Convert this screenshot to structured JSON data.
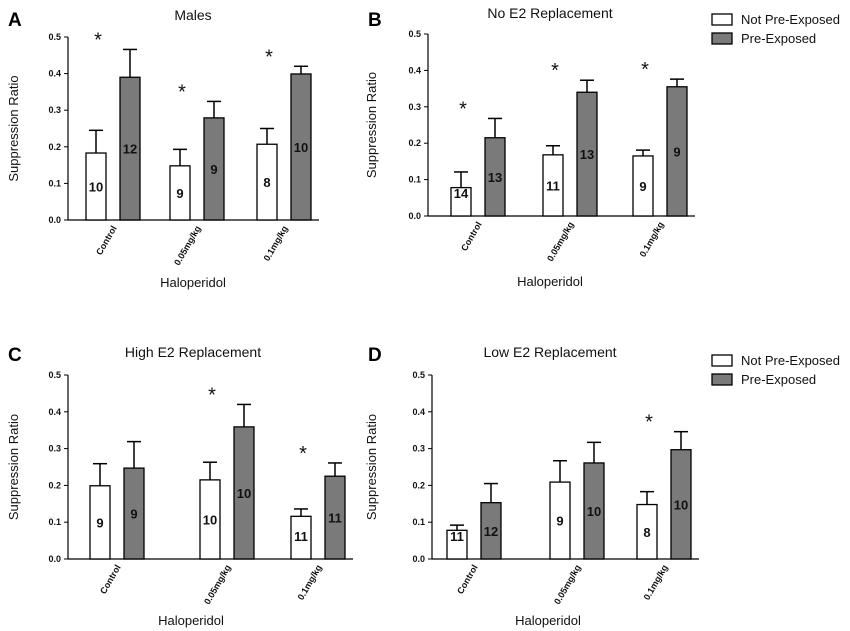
{
  "chart_data": [
    {
      "panel": "A",
      "type": "bar",
      "title": "Males",
      "ylabel": "Suppression  Ratio",
      "xlabel": "Haloperidol",
      "ylim": [
        0,
        0.5
      ],
      "yticks": [
        "0.0",
        "0.1",
        "0.2",
        "0.3",
        "0.4",
        "0.5"
      ],
      "categories": [
        "Control",
        "0.05mg/kg",
        "0.1mg/kg"
      ],
      "series": [
        {
          "name": "Not Pre-Exposed",
          "values": [
            0.183,
            0.148,
            0.207
          ],
          "errors": [
            0.062,
            0.045,
            0.043
          ],
          "n": [
            "10",
            "9",
            "8"
          ]
        },
        {
          "name": "Pre-Exposed",
          "values": [
            0.39,
            0.279,
            0.399
          ],
          "errors": [
            0.076,
            0.045,
            0.021
          ],
          "n": [
            "12",
            "9",
            "10"
          ]
        }
      ],
      "significant": [
        "*",
        "*",
        "*"
      ],
      "legend": null
    },
    {
      "panel": "B",
      "type": "bar",
      "title": "No E2 Replacement",
      "ylabel": "Suppression Ratio",
      "xlabel": "Haloperidol",
      "ylim": [
        0,
        0.5
      ],
      "yticks": [
        "0.0",
        "0.1",
        "0.2",
        "0.3",
        "0.4",
        "0.5"
      ],
      "categories": [
        "Control",
        "0.05mg/kg",
        "0.1mg/kg"
      ],
      "series": [
        {
          "name": "Not Pre-Exposed",
          "values": [
            0.078,
            0.168,
            0.165
          ],
          "errors": [
            0.043,
            0.025,
            0.016
          ],
          "n": [
            "14",
            "11",
            "9"
          ]
        },
        {
          "name": "Pre-Exposed",
          "values": [
            0.215,
            0.34,
            0.355
          ],
          "errors": [
            0.053,
            0.033,
            0.021
          ],
          "n": [
            "13",
            "13",
            "9"
          ]
        }
      ],
      "significant": [
        "*",
        "*",
        "*"
      ],
      "legend": "top-right"
    },
    {
      "panel": "C",
      "type": "bar",
      "title": "High E2 Replacement",
      "ylabel": "Suppression Ratio",
      "xlabel": "Haloperidol",
      "ylim": [
        0,
        0.5
      ],
      "yticks": [
        "0.0",
        "0.1",
        "0.2",
        "0.3",
        "0.4",
        "0.5"
      ],
      "categories": [
        "Control",
        "0.05mg/kg",
        "0.1mg/kg"
      ],
      "series": [
        {
          "name": "Not Pre-Exposed",
          "values": [
            0.199,
            0.215,
            0.116
          ],
          "errors": [
            0.06,
            0.048,
            0.02
          ],
          "n": [
            "9",
            "10",
            "11"
          ]
        },
        {
          "name": "Pre-Exposed",
          "values": [
            0.247,
            0.359,
            0.225
          ],
          "errors": [
            0.072,
            0.061,
            0.036
          ],
          "n": [
            "9",
            "10",
            "11"
          ]
        }
      ],
      "significant": [
        "",
        "*",
        "*"
      ],
      "legend": null
    },
    {
      "panel": "D",
      "type": "bar",
      "title": "Low E2 Replacement",
      "ylabel": "Suppression Ratio",
      "xlabel": "Haloperidol",
      "ylim": [
        0,
        0.5
      ],
      "yticks": [
        "0.0",
        "0.1",
        "0.2",
        "0.3",
        "0.4",
        "0.5"
      ],
      "categories": [
        "Control",
        "0.05mg/kg",
        "0.1mg/kg"
      ],
      "series": [
        {
          "name": "Not Pre-Exposed",
          "values": [
            0.078,
            0.209,
            0.148
          ],
          "errors": [
            0.014,
            0.058,
            0.035
          ],
          "n": [
            "11",
            "9",
            "8"
          ]
        },
        {
          "name": "Pre-Exposed",
          "values": [
            0.153,
            0.261,
            0.297
          ],
          "errors": [
            0.052,
            0.056,
            0.049
          ],
          "n": [
            "12",
            "10",
            "10"
          ]
        }
      ],
      "significant": [
        "",
        "",
        "*"
      ],
      "legend": "top-right"
    }
  ],
  "legend_labels": [
    "Not Pre-Exposed",
    "Pre-Exposed"
  ],
  "colors": {
    "not_pre_exposed": "#ffffff",
    "pre_exposed": "#7a7a7a",
    "stroke": "#000000"
  }
}
